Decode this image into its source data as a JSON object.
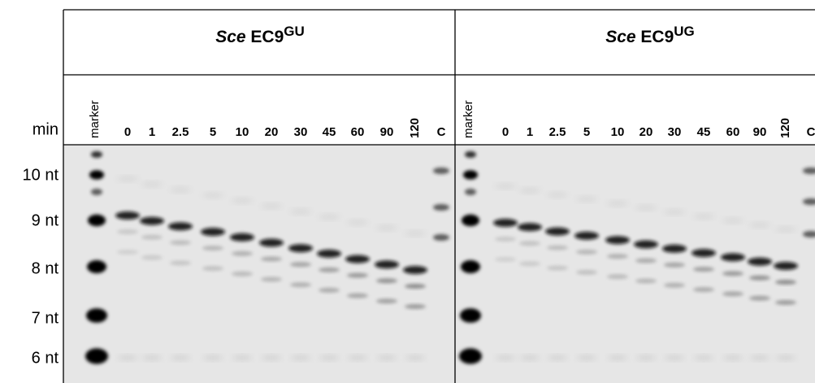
{
  "header": {
    "row_labels": [
      "min",
      "10 nt",
      "9 nt",
      "8 nt",
      "7 nt",
      "6 nt"
    ],
    "panels": [
      {
        "title_species": "Sce",
        "title_name": "EC9",
        "title_sup": "GU",
        "lanes": [
          "marker",
          "0",
          "1",
          "2.5",
          "5",
          "10",
          "20",
          "30",
          "45",
          "60",
          "90",
          "120",
          "C"
        ]
      },
      {
        "title_species": "Sce",
        "title_name": "EC9",
        "title_sup": "UG",
        "lanes": [
          "marker",
          "0",
          "1",
          "2.5",
          "5",
          "10",
          "20",
          "30",
          "45",
          "60",
          "90",
          "120",
          "C"
        ]
      }
    ]
  }
}
